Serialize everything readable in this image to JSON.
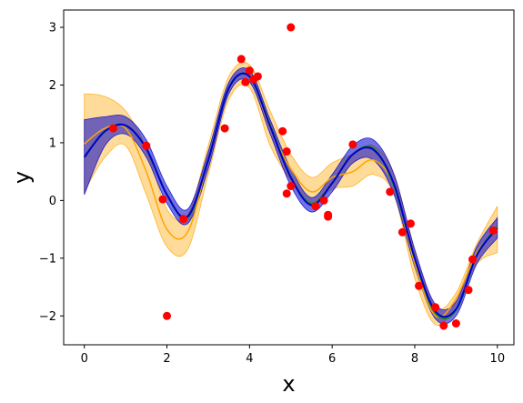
{
  "chart_data": {
    "type": "line",
    "title": "",
    "xlabel": "x",
    "ylabel": "y",
    "xlim": [
      -0.5,
      10.4
    ],
    "ylim": [
      -2.5,
      3.3
    ],
    "xticks": [
      0,
      2,
      4,
      6,
      8,
      10
    ],
    "xtick_labels": [
      "0",
      "2",
      "4",
      "6",
      "8",
      "10"
    ],
    "yticks": [
      -2,
      -1,
      0,
      1,
      2,
      3
    ],
    "ytick_labels": [
      "−2",
      "−1",
      "0",
      "1",
      "2",
      "3"
    ],
    "grid": false,
    "legend": false,
    "x": [
      0,
      0.5,
      1,
      1.5,
      2,
      2.5,
      3,
      3.5,
      4,
      4.5,
      5,
      5.5,
      6,
      6.5,
      7,
      7.5,
      8,
      8.5,
      9,
      9.5,
      10
    ],
    "bands": [
      {
        "color": "#ffa500",
        "opacity": 0.4,
        "lower": [
          0.15,
          0.75,
          0.95,
          0.1,
          -0.8,
          -0.85,
          0.45,
          1.75,
          1.95,
          0.95,
          0.35,
          -0.05,
          0.2,
          0.25,
          0.45,
          0.1,
          -1.35,
          -2.15,
          -1.8,
          -1.1,
          -0.9
        ],
        "upper": [
          1.85,
          1.8,
          1.55,
          0.9,
          -0.15,
          -0.25,
          0.95,
          2.15,
          2.35,
          1.55,
          0.8,
          0.4,
          0.65,
          0.8,
          0.95,
          0.45,
          -0.85,
          -1.85,
          -1.6,
          -0.75,
          -0.1
        ]
      },
      {
        "color": "#0000cd",
        "opacity": 0.55,
        "lower": [
          0.1,
          0.95,
          1.15,
          0.75,
          -0.05,
          -0.4,
          0.55,
          1.85,
          2.05,
          1.15,
          0.25,
          -0.2,
          0.15,
          0.65,
          0.7,
          0.1,
          -1.15,
          -2.05,
          -2.0,
          -1.1,
          -0.65
        ],
        "upper": [
          1.4,
          1.45,
          1.45,
          1.05,
          0.25,
          -0.15,
          0.85,
          2.05,
          2.25,
          1.4,
          0.55,
          0.05,
          0.45,
          0.95,
          1.05,
          0.45,
          -0.85,
          -1.8,
          -1.75,
          -0.8,
          -0.3
        ]
      }
    ],
    "series": [
      {
        "color": "#ffa500",
        "width": 1.5,
        "values": [
          0.98,
          1.25,
          1.25,
          0.5,
          -0.5,
          -0.55,
          0.7,
          1.95,
          2.15,
          1.25,
          0.55,
          0.15,
          0.4,
          0.5,
          0.7,
          0.25,
          -1.1,
          -2.0,
          -1.7,
          -0.9,
          -0.5
        ]
      },
      {
        "color": "#228b22",
        "width": 2.2,
        "values": [
          0.75,
          1.2,
          1.3,
          0.9,
          0.1,
          -0.3,
          0.7,
          1.95,
          2.15,
          1.3,
          0.4,
          -0.05,
          0.3,
          0.8,
          0.9,
          0.25,
          -1.0,
          -1.95,
          -1.9,
          -0.95,
          -0.45
        ]
      },
      {
        "color": "#0000cd",
        "width": 2.0,
        "values": [
          0.75,
          1.2,
          1.3,
          0.9,
          0.1,
          -0.28,
          0.7,
          1.95,
          2.15,
          1.28,
          0.4,
          -0.08,
          0.3,
          0.8,
          0.88,
          0.28,
          -1.0,
          -1.92,
          -1.88,
          -0.95,
          -0.48
        ]
      }
    ],
    "scatter": {
      "color": "#ff0000",
      "x": [
        0.7,
        1.5,
        1.9,
        2.0,
        2.4,
        3.4,
        3.8,
        3.9,
        4.0,
        4.1,
        4.2,
        4.8,
        4.9,
        4.9,
        5.0,
        5.0,
        5.6,
        5.8,
        5.9,
        5.9,
        6.5,
        7.4,
        7.7,
        7.9,
        8.1,
        8.5,
        8.7,
        9.0,
        9.3,
        9.4,
        9.9
      ],
      "y": [
        1.25,
        0.95,
        0.02,
        -2.0,
        -0.32,
        1.25,
        2.45,
        2.05,
        2.25,
        2.1,
        2.15,
        1.2,
        0.85,
        0.12,
        0.25,
        3.0,
        -0.1,
        0.0,
        -0.25,
        -0.28,
        0.97,
        0.15,
        -0.55,
        -0.4,
        -1.48,
        -1.85,
        -2.17,
        -2.13,
        -1.55,
        -1.02,
        -0.52
      ]
    }
  }
}
